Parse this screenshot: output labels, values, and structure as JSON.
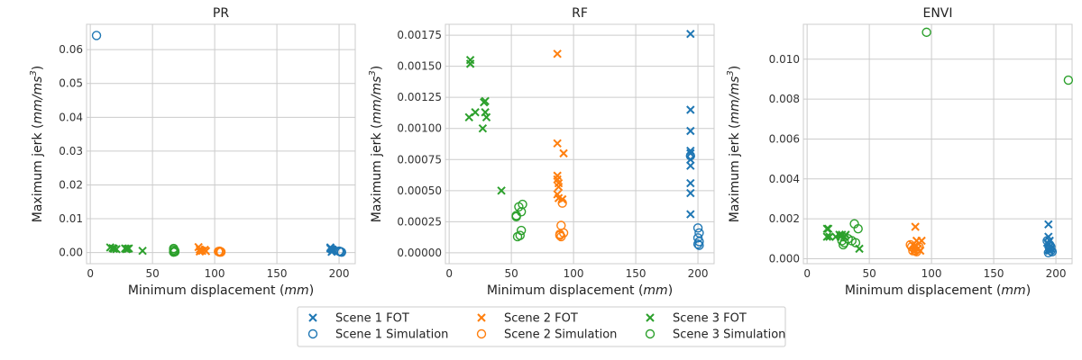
{
  "chart_data": [
    {
      "type": "scatter",
      "title": "PR",
      "xlabel": "Minimum displacement",
      "xunit": "mm",
      "ylabel": "Maximum jerk",
      "yunit": "mm/ms",
      "yunit_exp": "3",
      "xlim": [
        -3,
        213
      ],
      "ylim": [
        -0.0033,
        0.0675
      ],
      "xticks": [
        0,
        50,
        100,
        150,
        200
      ],
      "xtick_labels": [
        "0",
        "50",
        "100",
        "150",
        "200"
      ],
      "yticks": [
        0,
        0.01,
        0.02,
        0.03,
        0.04,
        0.05,
        0.06
      ],
      "ytick_labels": [
        "0.00",
        "0.01",
        "0.02",
        "0.03",
        "0.04",
        "0.05",
        "0.06"
      ],
      "grid": true,
      "series": [
        {
          "name": "Scene 1 FOT",
          "marker": "x",
          "color": "#1f77b4",
          "points": [
            [
              193,
              0.0015
            ],
            [
              194,
              0.001
            ],
            [
              195,
              0.0005
            ],
            [
              194,
              0.0002
            ],
            [
              195,
              0.0008
            ],
            [
              193,
              0.0012
            ]
          ]
        },
        {
          "name": "Scene 1 Simulation",
          "marker": "o",
          "color": "#1f77b4",
          "points": [
            [
              5,
              0.0642
            ],
            [
              200,
              0.0004
            ],
            [
              201,
              0.0002
            ],
            [
              202,
              0.0001
            ],
            [
              201,
              0.0003
            ]
          ]
        },
        {
          "name": "Scene 2 FOT",
          "marker": "x",
          "color": "#ff7f0e",
          "points": [
            [
              87,
              0.0016
            ],
            [
              88,
              0.0009
            ],
            [
              89,
              0.0006
            ],
            [
              90,
              0.0005
            ],
            [
              92,
              0.0008
            ],
            [
              93,
              0.0004
            ],
            [
              88,
              0.0003
            ]
          ]
        },
        {
          "name": "Scene 2 Simulation",
          "marker": "o",
          "color": "#ff7f0e",
          "points": [
            [
              104,
              0.0004
            ],
            [
              105,
              0.0002
            ],
            [
              104,
              0.0001
            ],
            [
              103,
              0.0003
            ],
            [
              105,
              0.00015
            ]
          ]
        },
        {
          "name": "Scene 3 FOT",
          "marker": "x",
          "color": "#2ca02c",
          "points": [
            [
              16,
              0.0015
            ],
            [
              18,
              0.0013
            ],
            [
              19,
              0.0011
            ],
            [
              21,
              0.001
            ],
            [
              28,
              0.0012
            ],
            [
              30,
              0.0011
            ],
            [
              29,
              0.001
            ],
            [
              31,
              0.0012
            ],
            [
              42,
              0.0005
            ]
          ]
        },
        {
          "name": "Scene 3 Simulation",
          "marker": "o",
          "color": "#2ca02c",
          "points": [
            [
              67,
              0.0012
            ],
            [
              67,
              0.0008
            ],
            [
              68,
              0.0005
            ],
            [
              67,
              0.0003
            ],
            [
              68,
              0.0002
            ],
            [
              67,
              0.0001
            ]
          ]
        }
      ]
    },
    {
      "type": "scatter",
      "title": "RF",
      "xlabel": "Minimum displacement",
      "xunit": "mm",
      "ylabel": "Maximum jerk",
      "yunit": "mm/ms",
      "yunit_exp": "3",
      "xlim": [
        -3,
        213
      ],
      "ylim": [
        -8.75e-05,
        0.0018375
      ],
      "xticks": [
        0,
        50,
        100,
        150,
        200
      ],
      "xtick_labels": [
        "0",
        "50",
        "100",
        "150",
        "200"
      ],
      "yticks": [
        0,
        0.00025,
        0.0005,
        0.00075,
        0.001,
        0.00125,
        0.0015,
        0.00175
      ],
      "ytick_labels": [
        "0.00000",
        "0.00025",
        "0.00050",
        "0.00075",
        "0.00100",
        "0.00125",
        "0.00150",
        "0.00175"
      ],
      "grid": true,
      "series": [
        {
          "name": "Scene 1 FOT",
          "marker": "x",
          "color": "#1f77b4",
          "points": [
            [
              194,
              0.00176
            ],
            [
              194,
              0.00115
            ],
            [
              194,
              0.00098
            ],
            [
              194,
              0.00082
            ],
            [
              194,
              0.0008
            ],
            [
              194,
              0.00075
            ],
            [
              194,
              0.0007
            ],
            [
              194,
              0.00056
            ],
            [
              194,
              0.00048
            ],
            [
              194,
              0.00031
            ]
          ]
        },
        {
          "name": "Scene 1 Simulation",
          "marker": "o",
          "color": "#1f77b4",
          "points": [
            [
              194,
              0.00078
            ],
            [
              200,
              0.0002
            ],
            [
              201,
              0.00016
            ],
            [
              200,
              0.00012
            ],
            [
              201,
              9e-05
            ],
            [
              200,
              7e-05
            ],
            [
              201,
              6e-05
            ]
          ]
        },
        {
          "name": "Scene 2 FOT",
          "marker": "x",
          "color": "#ff7f0e",
          "points": [
            [
              87,
              0.0016
            ],
            [
              87,
              0.00088
            ],
            [
              92,
              0.0008
            ],
            [
              87,
              0.00062
            ],
            [
              87,
              0.00059
            ],
            [
              88,
              0.00056
            ],
            [
              88,
              0.00053
            ],
            [
              87,
              0.00047
            ],
            [
              88,
              0.00044
            ],
            [
              91,
              0.00043
            ]
          ]
        },
        {
          "name": "Scene 2 Simulation",
          "marker": "o",
          "color": "#ff7f0e",
          "points": [
            [
              91,
              0.0004
            ],
            [
              90,
              0.00022
            ],
            [
              92,
              0.00016
            ],
            [
              89,
              0.00014
            ],
            [
              90,
              0.00013
            ],
            [
              89,
              0.00015
            ]
          ]
        },
        {
          "name": "Scene 3 FOT",
          "marker": "x",
          "color": "#2ca02c",
          "points": [
            [
              17,
              0.00155
            ],
            [
              17,
              0.00152
            ],
            [
              16,
              0.00109
            ],
            [
              21,
              0.00113
            ],
            [
              28,
              0.00121
            ],
            [
              29,
              0.00122
            ],
            [
              29,
              0.00113
            ],
            [
              30,
              0.00109
            ],
            [
              27,
              0.001
            ],
            [
              42,
              0.0005
            ]
          ]
        },
        {
          "name": "Scene 3 Simulation",
          "marker": "o",
          "color": "#2ca02c",
          "points": [
            [
              59,
              0.00039
            ],
            [
              56,
              0.00037
            ],
            [
              58,
              0.00033
            ],
            [
              54,
              0.0003
            ],
            [
              54,
              0.00029
            ],
            [
              58,
              0.00018
            ],
            [
              57,
              0.00014
            ],
            [
              55,
              0.00013
            ]
          ]
        }
      ]
    },
    {
      "type": "scatter",
      "title": "ENVI",
      "xlabel": "Minimum displacement",
      "xunit": "mm",
      "ylabel": "Maximum jerk",
      "yunit": "mm/ms",
      "yunit_exp": "3",
      "xlim": [
        -3,
        213
      ],
      "ylim": [
        -0.00025,
        0.01175
      ],
      "xticks": [
        0,
        50,
        100,
        150,
        200
      ],
      "xtick_labels": [
        "0",
        "50",
        "100",
        "150",
        "200"
      ],
      "yticks": [
        0,
        0.002,
        0.004,
        0.006,
        0.008,
        0.01
      ],
      "ytick_labels": [
        "0.000",
        "0.002",
        "0.004",
        "0.006",
        "0.008",
        "0.010"
      ],
      "grid": true,
      "series": [
        {
          "name": "Scene 1 FOT",
          "marker": "x",
          "color": "#1f77b4",
          "points": [
            [
              194,
              0.00172
            ],
            [
              194,
              0.0011
            ],
            [
              195,
              0.0009
            ],
            [
              194,
              0.0007
            ],
            [
              195,
              0.0006
            ],
            [
              196,
              0.0005
            ],
            [
              194,
              0.00045
            ],
            [
              195,
              0.0004
            ],
            [
              193,
              0.0008
            ]
          ]
        },
        {
          "name": "Scene 1 Simulation",
          "marker": "o",
          "color": "#1f77b4",
          "points": [
            [
              193,
              0.0009
            ],
            [
              195,
              0.0007
            ],
            [
              196,
              0.0006
            ],
            [
              195,
              0.0005
            ],
            [
              196,
              0.0004
            ],
            [
              194,
              0.0003
            ],
            [
              197,
              0.00035
            ]
          ]
        },
        {
          "name": "Scene 2 FOT",
          "marker": "x",
          "color": "#ff7f0e",
          "points": [
            [
              87,
              0.0016
            ],
            [
              88,
              0.0009
            ],
            [
              92,
              0.0009
            ],
            [
              85,
              0.0007
            ],
            [
              87,
              0.0006
            ],
            [
              89,
              0.0005
            ],
            [
              86,
              0.0004
            ],
            [
              91,
              0.0004
            ]
          ]
        },
        {
          "name": "Scene 2 Simulation",
          "marker": "o",
          "color": "#ff7f0e",
          "points": [
            [
              83,
              0.0007
            ],
            [
              84,
              0.0006
            ],
            [
              86,
              0.0005
            ],
            [
              85,
              0.0004
            ],
            [
              87,
              0.0004
            ],
            [
              88,
              0.00035
            ],
            [
              89,
              0.0005
            ],
            [
              90,
              0.0006
            ]
          ]
        },
        {
          "name": "Scene 3 FOT",
          "marker": "x",
          "color": "#2ca02c",
          "points": [
            [
              16,
              0.0015
            ],
            [
              17,
              0.0015
            ],
            [
              18,
              0.0011
            ],
            [
              16,
              0.0011
            ],
            [
              23,
              0.0011
            ],
            [
              26,
              0.0012
            ],
            [
              27,
              0.0011
            ],
            [
              28,
              0.0012
            ],
            [
              30,
              0.0011
            ],
            [
              31,
              0.0012
            ],
            [
              42,
              0.0005
            ]
          ]
        },
        {
          "name": "Scene 3 Simulation",
          "marker": "o",
          "color": "#2ca02c",
          "points": [
            [
              96,
              0.01135
            ],
            [
              210,
              0.00895
            ],
            [
              38,
              0.00175
            ],
            [
              41,
              0.0015
            ],
            [
              28,
              0.0009
            ],
            [
              30,
              0.0008
            ],
            [
              33,
              0.001
            ],
            [
              36,
              0.0009
            ],
            [
              39,
              0.0008
            ],
            [
              29,
              0.0007
            ]
          ]
        }
      ]
    }
  ],
  "legend": {
    "placement": "bottom-center",
    "entries": [
      {
        "label": "Scene 1 FOT",
        "marker": "x",
        "color": "#1f77b4"
      },
      {
        "label": "Scene 1 Simulation",
        "marker": "o",
        "color": "#1f77b4"
      },
      {
        "label": "Scene 2 FOT",
        "marker": "x",
        "color": "#ff7f0e"
      },
      {
        "label": "Scene 2 Simulation",
        "marker": "o",
        "color": "#ff7f0e"
      },
      {
        "label": "Scene 3 FOT",
        "marker": "x",
        "color": "#2ca02c"
      },
      {
        "label": "Scene 3 Simulation",
        "marker": "o",
        "color": "#2ca02c"
      }
    ]
  }
}
